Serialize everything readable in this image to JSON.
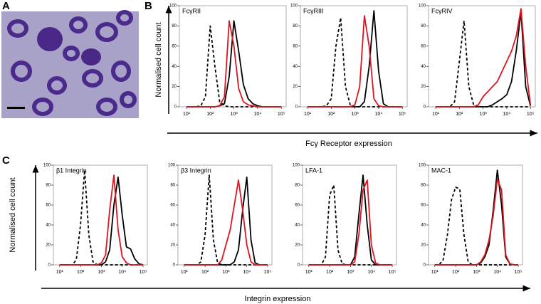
{
  "figure": {
    "panel_labels": [
      "A",
      "B",
      "C"
    ],
    "receptor_y_label": "Normalised cell count",
    "receptor_x_label": "Fcγ Receptor expression",
    "integrin_y_label": "Normalised cell count",
    "integrin_x_label": "Integrin expression"
  },
  "chart_data": [
    {
      "type": "line",
      "title": "FcγRII",
      "log_x": true,
      "xlim": [
        5,
        160000
      ],
      "ylim": [
        0,
        100
      ],
      "yticks": [
        0,
        20,
        40,
        60,
        80,
        100
      ],
      "xticks": [
        {
          "value": 10,
          "label": "10¹"
        },
        {
          "value": 100,
          "label": "10²"
        },
        {
          "value": 1000,
          "label": "10³"
        },
        {
          "value": 10000,
          "label": "10⁴"
        },
        {
          "value": 100000,
          "label": "10⁵"
        }
      ],
      "x": [
        10,
        16,
        25,
        40,
        63,
        100,
        158,
        251,
        398,
        631,
        1000,
        1585,
        2512,
        3981,
        6310,
        10000,
        15849,
        25119,
        39811,
        63096,
        100000
      ],
      "series": [
        {
          "color": "#000000",
          "dash": true,
          "values": [
            0,
            0,
            0,
            1,
            10,
            80,
            40,
            5,
            1,
            0,
            0,
            0,
            0,
            0,
            0,
            0,
            0,
            0,
            0,
            0,
            0
          ]
        },
        {
          "color": "#000000",
          "dash": false,
          "values": [
            0,
            0,
            0,
            0,
            0,
            0,
            0,
            1,
            3,
            30,
            85,
            55,
            22,
            8,
            3,
            1,
            0,
            0,
            0,
            0,
            0
          ]
        },
        {
          "color": "#e0141e",
          "dash": false,
          "values": [
            0,
            0,
            0,
            0,
            0,
            0,
            0,
            1,
            10,
            85,
            60,
            18,
            5,
            2,
            1,
            0,
            0,
            0,
            0,
            0,
            0
          ]
        }
      ]
    },
    {
      "type": "line",
      "title": "FcγRIII",
      "log_x": true,
      "xlim": [
        5,
        160000
      ],
      "ylim": [
        0,
        100
      ],
      "yticks": [
        0,
        20,
        40,
        60,
        80,
        100
      ],
      "xticks": [
        {
          "value": 10,
          "label": "10¹"
        },
        {
          "value": 100,
          "label": "10²"
        },
        {
          "value": 1000,
          "label": "10³"
        },
        {
          "value": 10000,
          "label": "10⁴"
        },
        {
          "value": 100000,
          "label": "10⁵"
        }
      ],
      "x": [
        10,
        16,
        25,
        40,
        63,
        100,
        158,
        251,
        398,
        631,
        1000,
        1585,
        2512,
        3981,
        6310,
        10000,
        15849,
        25119,
        39811,
        63096,
        100000
      ],
      "series": [
        {
          "color": "#000000",
          "dash": true,
          "values": [
            0,
            0,
            0,
            0,
            1,
            8,
            60,
            88,
            20,
            2,
            0,
            0,
            0,
            0,
            0,
            0,
            0,
            0,
            0,
            0,
            0
          ]
        },
        {
          "color": "#000000",
          "dash": false,
          "values": [
            0,
            0,
            0,
            0,
            0,
            0,
            0,
            0,
            0,
            0,
            0,
            0,
            5,
            40,
            95,
            35,
            3,
            0,
            0,
            0,
            0
          ]
        },
        {
          "color": "#e0141e",
          "dash": false,
          "values": [
            0,
            0,
            0,
            0,
            0,
            0,
            0,
            0,
            0,
            0,
            2,
            20,
            90,
            60,
            8,
            1,
            0,
            0,
            0,
            0,
            0
          ]
        }
      ]
    },
    {
      "type": "line",
      "title": "FcγRIV",
      "log_x": true,
      "xlim": [
        5,
        160000
      ],
      "ylim": [
        0,
        100
      ],
      "yticks": [
        0,
        20,
        40,
        60,
        80,
        100
      ],
      "xticks": [
        {
          "value": 10,
          "label": "10¹"
        },
        {
          "value": 100,
          "label": "10²"
        },
        {
          "value": 1000,
          "label": "10³"
        },
        {
          "value": 10000,
          "label": "10⁴"
        },
        {
          "value": 100000,
          "label": "10⁵"
        }
      ],
      "x": [
        10,
        16,
        25,
        40,
        63,
        100,
        158,
        251,
        398,
        631,
        1000,
        1585,
        2512,
        3981,
        6310,
        10000,
        15849,
        25119,
        39811,
        63096,
        100000
      ],
      "series": [
        {
          "color": "#000000",
          "dash": true,
          "values": [
            0,
            0,
            0,
            0,
            5,
            45,
            85,
            20,
            2,
            0,
            0,
            0,
            0,
            0,
            0,
            0,
            0,
            0,
            0,
            0,
            0
          ]
        },
        {
          "color": "#000000",
          "dash": false,
          "values": [
            0,
            0,
            0,
            0,
            0,
            0,
            0,
            0,
            0,
            0,
            0,
            0,
            2,
            5,
            8,
            12,
            25,
            55,
            94,
            20,
            1
          ]
        },
        {
          "color": "#e0141e",
          "dash": false,
          "values": [
            0,
            0,
            0,
            0,
            0,
            0,
            0,
            0,
            0,
            2,
            10,
            15,
            20,
            25,
            35,
            45,
            55,
            70,
            97,
            40,
            2
          ]
        }
      ]
    },
    {
      "type": "line",
      "title": "β1 Integrin",
      "log_x": true,
      "xlim": [
        5,
        160000
      ],
      "ylim": [
        0,
        100
      ],
      "yticks": [
        0,
        20,
        40,
        60,
        80,
        100
      ],
      "xticks": [
        {
          "value": 10,
          "label": "10¹"
        },
        {
          "value": 100,
          "label": "10²"
        },
        {
          "value": 1000,
          "label": "10³"
        },
        {
          "value": 10000,
          "label": "10⁴"
        },
        {
          "value": 100000,
          "label": "10⁵"
        }
      ],
      "x": [
        10,
        16,
        25,
        40,
        63,
        100,
        158,
        251,
        398,
        631,
        1000,
        1585,
        2512,
        3981,
        6310,
        10000,
        15849,
        25119,
        39811,
        63096,
        100000
      ],
      "series": [
        {
          "color": "#000000",
          "dash": true,
          "values": [
            0,
            0,
            0,
            0,
            5,
            40,
            95,
            30,
            3,
            0,
            0,
            0,
            0,
            0,
            0,
            0,
            0,
            0,
            0,
            0,
            0
          ]
        },
        {
          "color": "#000000",
          "dash": false,
          "values": [
            0,
            0,
            0,
            0,
            0,
            0,
            0,
            0,
            0,
            0,
            0,
            3,
            15,
            60,
            88,
            50,
            18,
            16,
            6,
            1,
            0
          ]
        },
        {
          "color": "#e0141e",
          "dash": false,
          "values": [
            0,
            0,
            0,
            0,
            0,
            0,
            0,
            0,
            0,
            0,
            2,
            10,
            55,
            90,
            35,
            8,
            2,
            0,
            0,
            0,
            0
          ]
        }
      ]
    },
    {
      "type": "line",
      "title": "β3 Integrin",
      "log_x": true,
      "xlim": [
        5,
        160000
      ],
      "ylim": [
        0,
        100
      ],
      "yticks": [
        0,
        20,
        40,
        60,
        80,
        100
      ],
      "xticks": [
        {
          "value": 10,
          "label": "10¹"
        },
        {
          "value": 100,
          "label": "10²"
        },
        {
          "value": 1000,
          "label": "10³"
        },
        {
          "value": 10000,
          "label": "10⁴"
        },
        {
          "value": 100000,
          "label": "10⁵"
        }
      ],
      "x": [
        10,
        16,
        25,
        40,
        63,
        100,
        158,
        251,
        398,
        631,
        1000,
        1585,
        2512,
        3981,
        6310,
        10000,
        15849,
        25119,
        39811,
        63096,
        100000
      ],
      "series": [
        {
          "color": "#000000",
          "dash": true,
          "values": [
            0,
            0,
            0,
            0,
            3,
            30,
            90,
            25,
            2,
            0,
            0,
            0,
            0,
            0,
            0,
            0,
            0,
            0,
            0,
            0,
            0
          ]
        },
        {
          "color": "#000000",
          "dash": false,
          "values": [
            0,
            0,
            0,
            0,
            0,
            0,
            0,
            0,
            0,
            0,
            0,
            0,
            3,
            15,
            55,
            88,
            25,
            2,
            0,
            0,
            0
          ]
        },
        {
          "color": "#e0141e",
          "dash": false,
          "values": [
            0,
            0,
            0,
            0,
            0,
            0,
            0,
            0,
            0,
            5,
            20,
            35,
            60,
            85,
            55,
            20,
            3,
            0,
            0,
            0,
            0
          ]
        }
      ]
    },
    {
      "type": "line",
      "title": "LFA-1",
      "log_x": true,
      "xlim": [
        5,
        160000
      ],
      "ylim": [
        0,
        100
      ],
      "yticks": [
        0,
        20,
        40,
        60,
        80,
        100
      ],
      "xticks": [
        {
          "value": 10,
          "label": "10¹"
        },
        {
          "value": 100,
          "label": "10²"
        },
        {
          "value": 1000,
          "label": "10³"
        },
        {
          "value": 10000,
          "label": "10⁴"
        },
        {
          "value": 100000,
          "label": "10⁵"
        }
      ],
      "x": [
        10,
        16,
        25,
        40,
        63,
        100,
        158,
        251,
        398,
        631,
        1000,
        1585,
        2512,
        3981,
        6310,
        10000,
        15849,
        25119,
        39811,
        63096,
        100000
      ],
      "series": [
        {
          "color": "#000000",
          "dash": true,
          "values": [
            0,
            0,
            0,
            0,
            8,
            70,
            80,
            15,
            1,
            0,
            0,
            0,
            0,
            0,
            0,
            0,
            0,
            0,
            0,
            0,
            0
          ]
        },
        {
          "color": "#000000",
          "dash": false,
          "values": [
            0,
            0,
            0,
            0,
            0,
            0,
            0,
            0,
            0,
            0,
            0,
            8,
            50,
            90,
            40,
            5,
            0,
            0,
            0,
            0,
            0
          ]
        },
        {
          "color": "#e0141e",
          "dash": false,
          "values": [
            0,
            0,
            0,
            0,
            0,
            0,
            0,
            0,
            0,
            0,
            0,
            3,
            30,
            75,
            85,
            20,
            2,
            0,
            0,
            0,
            0
          ]
        }
      ]
    },
    {
      "type": "line",
      "title": "MAC-1",
      "log_x": true,
      "xlim": [
        5,
        160000
      ],
      "ylim": [
        0,
        100
      ],
      "yticks": [
        0,
        20,
        40,
        60,
        80,
        100
      ],
      "xticks": [
        {
          "value": 10,
          "label": "10¹"
        },
        {
          "value": 100,
          "label": "10²"
        },
        {
          "value": 1000,
          "label": "10³"
        },
        {
          "value": 10000,
          "label": "10⁴"
        },
        {
          "value": 100000,
          "label": "10⁵"
        }
      ],
      "x": [
        10,
        16,
        25,
        40,
        63,
        100,
        158,
        251,
        398,
        631,
        1000,
        1585,
        2512,
        3981,
        6310,
        10000,
        15849,
        25119,
        39811,
        63096,
        100000
      ],
      "series": [
        {
          "color": "#000000",
          "dash": true,
          "values": [
            0,
            0,
            5,
            30,
            65,
            78,
            76,
            30,
            3,
            0,
            0,
            0,
            0,
            0,
            0,
            0,
            0,
            0,
            0,
            0,
            0
          ]
        },
        {
          "color": "#000000",
          "dash": false,
          "values": [
            0,
            0,
            0,
            0,
            0,
            0,
            0,
            0,
            0,
            0,
            0,
            2,
            8,
            20,
            55,
            95,
            60,
            8,
            1,
            0,
            0
          ]
        },
        {
          "color": "#e0141e",
          "dash": false,
          "values": [
            0,
            0,
            0,
            0,
            0,
            0,
            0,
            0,
            0,
            0,
            0,
            3,
            10,
            25,
            50,
            86,
            75,
            10,
            1,
            0,
            0
          ]
        }
      ]
    }
  ]
}
